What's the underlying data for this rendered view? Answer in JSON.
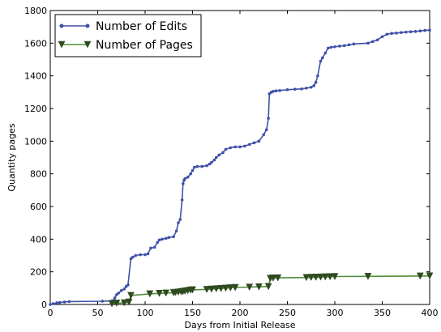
{
  "chart_data": {
    "type": "line",
    "title": "",
    "xlabel": "Days from Initial Release",
    "ylabel": "Quantity pages",
    "xlim": [
      0,
      400
    ],
    "ylim": [
      0,
      1800
    ],
    "xticks": [
      0,
      50,
      100,
      150,
      200,
      250,
      300,
      350,
      400
    ],
    "yticks": [
      0,
      200,
      400,
      600,
      800,
      1000,
      1200,
      1400,
      1600,
      1800
    ],
    "grid": false,
    "legend_position": "top-left",
    "series": [
      {
        "name": "Number of Edits",
        "color": "#3f51a9",
        "marker": "circle",
        "x": [
          0,
          3,
          7,
          10,
          15,
          20,
          55,
          65,
          67,
          68,
          70,
          72,
          75,
          78,
          80,
          82,
          85,
          87,
          90,
          95,
          100,
          103,
          106,
          110,
          113,
          115,
          118,
          122,
          125,
          130,
          133,
          135,
          137,
          139,
          140,
          141,
          142,
          145,
          148,
          150,
          152,
          155,
          160,
          165,
          168,
          170,
          173,
          175,
          178,
          182,
          185,
          190,
          195,
          200,
          205,
          210,
          215,
          220,
          225,
          228,
          230,
          231,
          233,
          235,
          238,
          242,
          250,
          258,
          265,
          270,
          275,
          278,
          280,
          282,
          285,
          287,
          290,
          293,
          296,
          300,
          305,
          310,
          315,
          320,
          335,
          340,
          345,
          350,
          355,
          360,
          365,
          370,
          375,
          380,
          385,
          390,
          395,
          400
        ],
        "y": [
          0,
          5,
          10,
          12,
          15,
          18,
          20,
          22,
          25,
          40,
          60,
          70,
          85,
          95,
          110,
          120,
          280,
          290,
          300,
          305,
          305,
          310,
          345,
          350,
          380,
          395,
          400,
          405,
          410,
          415,
          450,
          500,
          520,
          640,
          740,
          760,
          770,
          780,
          800,
          820,
          840,
          845,
          845,
          850,
          860,
          870,
          885,
          900,
          915,
          930,
          950,
          960,
          965,
          965,
          970,
          980,
          990,
          1000,
          1040,
          1070,
          1140,
          1290,
          1300,
          1305,
          1308,
          1310,
          1315,
          1318,
          1320,
          1325,
          1330,
          1340,
          1360,
          1400,
          1490,
          1510,
          1540,
          1570,
          1575,
          1578,
          1582,
          1585,
          1590,
          1595,
          1600,
          1610,
          1620,
          1640,
          1655,
          1660,
          1662,
          1665,
          1668,
          1670,
          1672,
          1675,
          1678,
          1680
        ]
      },
      {
        "name": "Number of Pages",
        "color": "#4f8f3a",
        "marker": "triangle-down",
        "x": [
          65,
          70,
          78,
          83,
          85,
          105,
          115,
          122,
          130,
          132,
          135,
          138,
          140,
          142,
          145,
          148,
          150,
          165,
          170,
          175,
          180,
          185,
          190,
          195,
          210,
          220,
          230,
          232,
          235,
          240,
          270,
          275,
          280,
          285,
          290,
          295,
          300,
          335,
          390,
          400
        ],
        "y": [
          5,
          8,
          10,
          15,
          55,
          65,
          68,
          70,
          72,
          74,
          76,
          78,
          80,
          82,
          85,
          88,
          90,
          92,
          94,
          96,
          98,
          100,
          102,
          104,
          106,
          108,
          110,
          160,
          162,
          163,
          165,
          166,
          167,
          168,
          169,
          170,
          171,
          172,
          174,
          175
        ]
      }
    ]
  }
}
